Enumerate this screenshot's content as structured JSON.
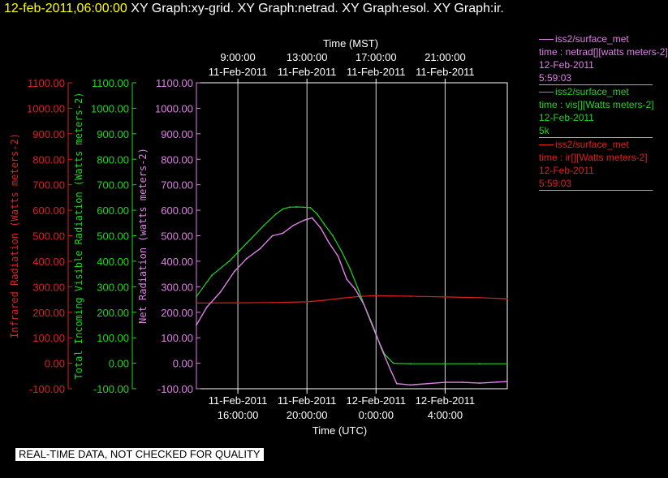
{
  "header": {
    "timestamp": "12-feb-2011,06:00:00",
    "titles": "XY Graph:xy-grid.  XY Graph:netrad.  XY Graph:esol.  XY Graph:ir."
  },
  "colors": {
    "ir": "#dd2020",
    "vis": "#1ed81e",
    "net": "#e080e8",
    "axis": "#ffffff",
    "grid": "#ffffff"
  },
  "legend": [
    {
      "source": "iss2/surface_met",
      "var": "time : netrad[][watts meters-2]",
      "date": "12-Feb-2011",
      "extra": "5:59:03",
      "color": "#e080e8"
    },
    {
      "source": "iss2/surface_met",
      "var": "time : vis[][Watts meters-2]",
      "date": "12-Feb-2011",
      "extra": "5k",
      "color": "#1ed81e"
    },
    {
      "source": "iss2/surface_met",
      "var": "time : ir[][Watts meters-2]",
      "date": "12-Feb-2011",
      "extra": "5:59:03",
      "color": "#dd2020"
    }
  ],
  "footer": {
    "quality_note": "REAL-TIME DATA, NOT CHECKED FOR QUALITY"
  },
  "chart_data": {
    "type": "line",
    "xlabel_bottom": "Time (UTC)",
    "xlabel_top": "Time (MST)",
    "x_range_hours_utc": [
      13.6,
      31.6
    ],
    "bottom_ticks": [
      {
        "h": 16,
        "date": "11-Feb-2011",
        "time": "16:00:00"
      },
      {
        "h": 20,
        "date": "11-Feb-2011",
        "time": "20:00:00"
      },
      {
        "h": 24,
        "date": "12-Feb-2011",
        "time": "0:00:00"
      },
      {
        "h": 28,
        "date": "12-Feb-2011",
        "time": "4:00:00"
      }
    ],
    "top_ticks": [
      {
        "h": 16,
        "time": "9:00:00",
        "date": "11-Feb-2011"
      },
      {
        "h": 20,
        "time": "13:00:00",
        "date": "11-Feb-2011"
      },
      {
        "h": 24,
        "time": "17:00:00",
        "date": "11-Feb-2011"
      },
      {
        "h": 28,
        "time": "21:00:00",
        "date": "11-Feb-2011"
      }
    ],
    "ylim": [
      -100,
      1100
    ],
    "y_ticks": [
      "-100.00",
      "0.00",
      "100.00",
      "200.00",
      "300.00",
      "400.00",
      "500.00",
      "600.00",
      "700.00",
      "800.00",
      "900.00",
      "1000.00",
      "1100.00"
    ],
    "axes": [
      {
        "key": "ir",
        "label": "Infrared Radiation (Watts meters-2)",
        "color": "#dd2020"
      },
      {
        "key": "vis",
        "label": "Total Incoming Visible Radiation (Watts meters-2)",
        "color": "#1ed81e"
      },
      {
        "key": "net",
        "label": "Net Radiation (watts meters-2)",
        "color": "#e080e8"
      }
    ],
    "series": [
      {
        "name": "ir",
        "color": "#dd2020",
        "x": [
          13.6,
          16,
          18,
          20,
          21,
          22,
          23,
          24,
          26,
          28,
          30,
          31.6
        ],
        "y": [
          236,
          237,
          238,
          241,
          247,
          255,
          262,
          265,
          263,
          260,
          257,
          253
        ]
      },
      {
        "name": "vis",
        "color": "#1ed81e",
        "x": [
          13.6,
          14.5,
          15.5,
          16.5,
          17.5,
          18.2,
          18.6,
          19,
          19.4,
          19.8,
          20.2,
          20.6,
          21,
          21.5,
          22,
          22.5,
          23,
          23.5,
          24,
          24.5,
          25,
          26,
          28,
          30,
          31.6
        ],
        "y": [
          262,
          345,
          400,
          470,
          540,
          585,
          605,
          612,
          613,
          612,
          610,
          585,
          545,
          500,
          440,
          370,
          285,
          195,
          110,
          35,
          0,
          -2,
          -2,
          -2,
          -2
        ]
      },
      {
        "name": "net",
        "color": "#e080e8",
        "x": [
          13.6,
          14.2,
          15,
          15.8,
          16.5,
          17.3,
          18,
          18.6,
          19.2,
          19.8,
          20.3,
          20.8,
          21.3,
          21.8,
          22.3,
          22.8,
          23.3,
          23.8,
          24.3,
          24.8,
          25.2,
          26,
          27,
          28,
          29,
          30,
          31,
          31.6
        ],
        "y": [
          150,
          220,
          280,
          360,
          410,
          450,
          500,
          510,
          540,
          560,
          570,
          530,
          470,
          420,
          330,
          290,
          230,
          150,
          60,
          -20,
          -80,
          -85,
          -80,
          -75,
          -75,
          -78,
          -74,
          -72
        ]
      }
    ]
  }
}
